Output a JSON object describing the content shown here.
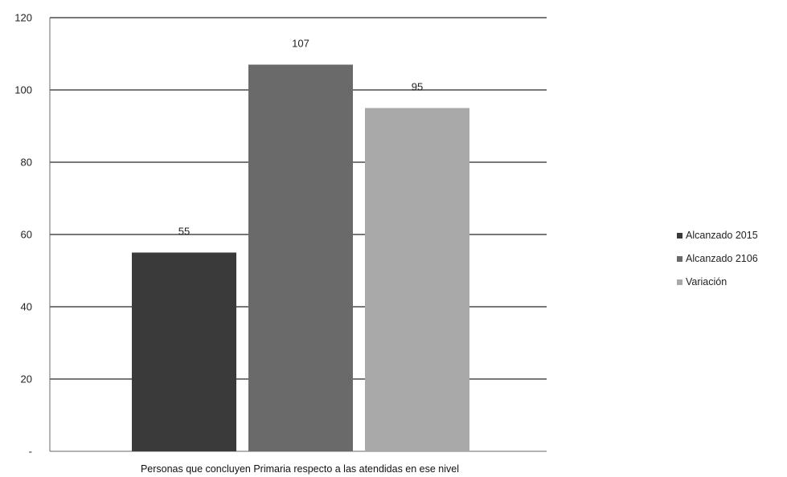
{
  "chart_data": {
    "type": "bar",
    "title": "",
    "xlabel": "",
    "ylabel": "",
    "ylim": [
      0,
      120
    ],
    "y_ticks": [
      {
        "value": 0,
        "label": "-"
      },
      {
        "value": 20,
        "label": "20"
      },
      {
        "value": 40,
        "label": "40"
      },
      {
        "value": 60,
        "label": "60"
      },
      {
        "value": 80,
        "label": "80"
      },
      {
        "value": 100,
        "label": "100"
      },
      {
        "value": 120,
        "label": "120"
      }
    ],
    "grid": true,
    "legend_position": "right",
    "categories": [
      "Personas que concluyen Primaria  respecto a las atendidas en ese nivel"
    ],
    "series": [
      {
        "name": "Alcanzado 2015",
        "values": [
          55
        ],
        "data_label": "55",
        "color": "#3a3a3a"
      },
      {
        "name": "Alcanzado 2106",
        "values": [
          107
        ],
        "data_label": "107",
        "color": "#6a6a6a"
      },
      {
        "name": "Variación",
        "values": [
          95
        ],
        "data_label": "95",
        "color": "#a9a9a9"
      }
    ]
  }
}
